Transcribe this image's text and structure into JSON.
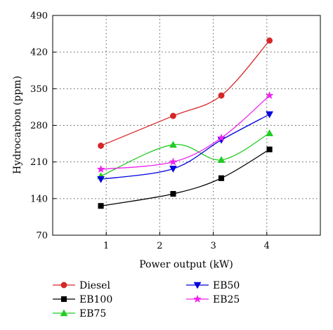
{
  "chart_data": {
    "type": "line",
    "title": "",
    "xlabel": "Power output (kW)",
    "ylabel": "Hydrocarbon (ppm)",
    "xlim": [
      0,
      5
    ],
    "ylim": [
      70,
      490
    ],
    "x_ticks": [
      "1",
      "2",
      "3",
      "4"
    ],
    "y_ticks": [
      "70",
      "140",
      "210",
      "280",
      "350",
      "420",
      "490"
    ],
    "grid": "dotted",
    "legend_position": "bottom",
    "series": [
      {
        "name": "Diesel",
        "color": "#d62728",
        "marker": "circle",
        "x": [
          0.9,
          2.25,
          3.15,
          4.05
        ],
        "y": [
          241,
          298,
          337,
          442
        ]
      },
      {
        "name": "EB100",
        "color": "#000000",
        "marker": "square",
        "x": [
          0.9,
          2.25,
          3.15,
          4.05
        ],
        "y": [
          126,
          149,
          179,
          234
        ]
      },
      {
        "name": "EB75",
        "color": "#22cc22",
        "marker": "triangle-up",
        "x": [
          0.9,
          2.25,
          3.15,
          4.05
        ],
        "y": [
          183,
          243,
          214,
          265
        ]
      },
      {
        "name": "EB50",
        "color": "#0000dd",
        "marker": "triangle-down",
        "x": [
          0.9,
          2.25,
          3.15,
          4.05
        ],
        "y": [
          177,
          197,
          252,
          301
        ]
      },
      {
        "name": "EB25",
        "color": "#ee22ee",
        "marker": "star",
        "x": [
          0.9,
          2.25,
          3.15,
          4.05
        ],
        "y": [
          196,
          210,
          256,
          337
        ]
      }
    ]
  }
}
